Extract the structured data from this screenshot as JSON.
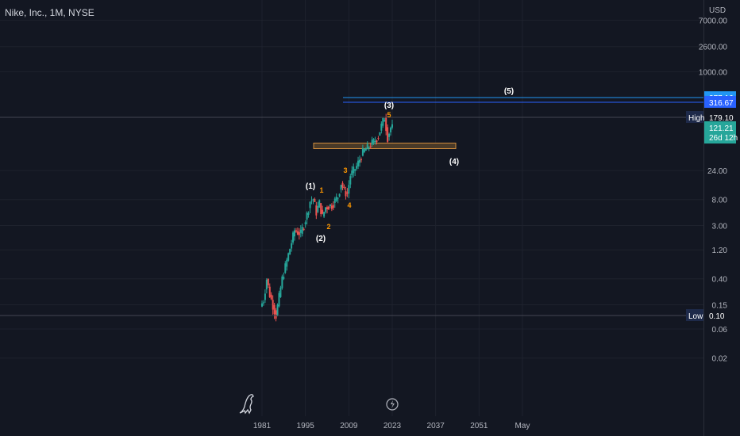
{
  "header": {
    "symbol": "Nike, Inc., 1M, NYSE"
  },
  "price_axis": {
    "currency": "USD",
    "ticks": [
      "7000.00",
      "2600.00",
      "1000.00",
      "24.00",
      "8.00",
      "3.00",
      "1.20",
      "0.40",
      "0.15",
      "0.06",
      "0.02"
    ],
    "log_scale": true
  },
  "time_axis": {
    "labels": [
      "1981",
      "1995",
      "2009",
      "2023",
      "2037",
      "2051",
      "May"
    ]
  },
  "markers": [
    {
      "label": "377.16",
      "kind": "line",
      "color": "#2196f3"
    },
    {
      "label": "316.67",
      "kind": "line",
      "color": "#2962ff"
    },
    {
      "label": "High",
      "value": "179.10",
      "kind": "high"
    },
    {
      "label": "",
      "value": "121.21",
      "sub": "26d 12h",
      "kind": "last",
      "color": "#26a69a"
    },
    {
      "label": "Low",
      "value": "0.10",
      "kind": "low"
    }
  ],
  "waves": {
    "major": [
      "(1)",
      "(2)",
      "(3)",
      "(4)",
      "(5)"
    ],
    "minor": [
      "1",
      "2",
      "3",
      "4",
      "5"
    ]
  },
  "chart_data": {
    "type": "line",
    "title": "Nike, Inc., 1M, NYSE",
    "y_scale": "log",
    "x": [
      1981,
      1982,
      1983,
      1984,
      1986,
      1988,
      1990,
      1992,
      1994,
      1996,
      1997,
      1998,
      1999,
      2000,
      2001,
      2002,
      2004,
      2006,
      2007,
      2008,
      2009,
      2010,
      2012,
      2014,
      2016,
      2018,
      2019,
      2020,
      2021,
      2022,
      2023
    ],
    "series": [
      {
        "values": [
          0.14,
          0.18,
          0.4,
          0.22,
          0.1,
          0.4,
          1.0,
          2.5,
          2.2,
          4.5,
          7.5,
          8.2,
          5.0,
          7.0,
          4.2,
          6.0,
          6.5,
          9.0,
          15.0,
          11.0,
          10.0,
          20.0,
          28.0,
          48.0,
          60.0,
          75.0,
          90.0,
          130.0,
          179.1,
          85.0,
          121.21
        ]
      }
    ],
    "ylim": [
      0.01,
      10000
    ],
    "xlim": [
      1978,
      2068
    ]
  },
  "colors": {
    "bg": "#131722",
    "grid": "#1e222d",
    "text": "#b2b5be",
    "bull": "#26a69a",
    "bear": "#ef5350",
    "box_fill": "#4a3a28",
    "box_stroke": "#d08c3c",
    "wave_major": "#ffffff",
    "wave_minor": "#ff9800"
  },
  "icons": [
    "tradingview-logo-icon",
    "lightning-icon"
  ]
}
